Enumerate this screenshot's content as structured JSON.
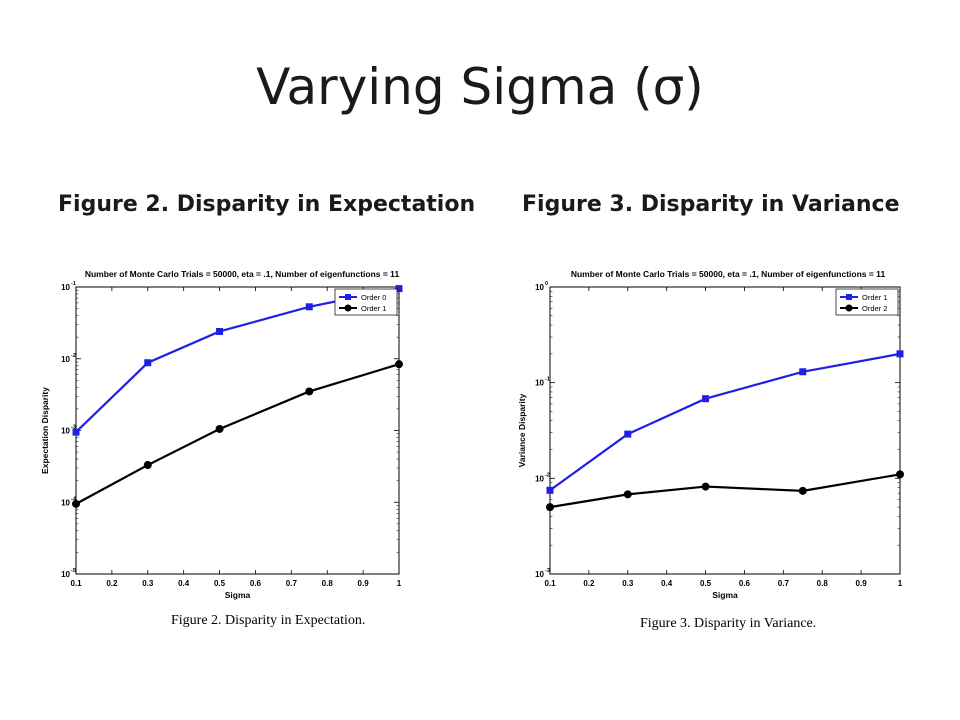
{
  "slide": {
    "title": "Varying Sigma (σ)",
    "left_heading": "Figure 2. Disparity in Expectation",
    "right_heading": "Figure 3. Disparity in Variance",
    "left_caption": "Figure 2. Disparity in Expectation.",
    "right_caption": "Figure 3. Disparity in Variance."
  },
  "colors": {
    "order_a": "#1f1fe6",
    "order_b": "#000000"
  },
  "chart_data": [
    {
      "type": "line",
      "title": "Number of Monte Carlo Trials = 50000, eta = .1, Number of eigenfunctions = 11",
      "xlabel": "Sigma",
      "ylabel": "Expectation Disparity",
      "xlim": [
        0.1,
        1
      ],
      "ylim": [
        1e-05,
        0.1
      ],
      "yscale": "log",
      "x_ticks": [
        "0.1",
        "0.2",
        "0.3",
        "0.4",
        "0.5",
        "0.6",
        "0.7",
        "0.8",
        "0.9",
        "1"
      ],
      "y_tick_exponents": [
        "-1",
        "-2",
        "-3",
        "-4",
        "-5"
      ],
      "legend": "top-right",
      "grid": false,
      "series": [
        {
          "name": "Order 0",
          "marker": "square",
          "color": "#1f1fe6",
          "x": [
            0.1,
            0.3,
            0.5,
            0.75,
            1
          ],
          "y": [
            0.00095,
            0.0088,
            0.024,
            0.053,
            0.095
          ]
        },
        {
          "name": "Order 1",
          "marker": "circle",
          "color": "#000000",
          "x": [
            0.1,
            0.3,
            0.5,
            0.75,
            1
          ],
          "y": [
            9.5e-05,
            0.00033,
            0.00105,
            0.0035,
            0.0084
          ]
        }
      ]
    },
    {
      "type": "line",
      "title": "Number of Monte Carlo Trials = 50000, eta = .1, Number of eigenfunctions = 11",
      "xlabel": "Sigma",
      "ylabel": "Variance Disparity",
      "xlim": [
        0.1,
        1
      ],
      "ylim": [
        0.001,
        1
      ],
      "yscale": "log",
      "x_ticks": [
        "0.1",
        "0.2",
        "0.3",
        "0.4",
        "0.5",
        "0.6",
        "0.7",
        "0.8",
        "0.9",
        "1"
      ],
      "y_tick_exponents": [
        "0",
        "-1",
        "-2",
        "-3"
      ],
      "legend": "top-right",
      "grid": false,
      "series": [
        {
          "name": "Order 1",
          "marker": "square",
          "color": "#1f1fe6",
          "x": [
            0.1,
            0.3,
            0.5,
            0.75,
            1
          ],
          "y": [
            0.0075,
            0.029,
            0.068,
            0.13,
            0.2
          ]
        },
        {
          "name": "Order 2",
          "marker": "circle",
          "color": "#000000",
          "x": [
            0.1,
            0.3,
            0.5,
            0.75,
            1
          ],
          "y": [
            0.005,
            0.0068,
            0.0082,
            0.0074,
            0.011
          ]
        }
      ]
    }
  ]
}
